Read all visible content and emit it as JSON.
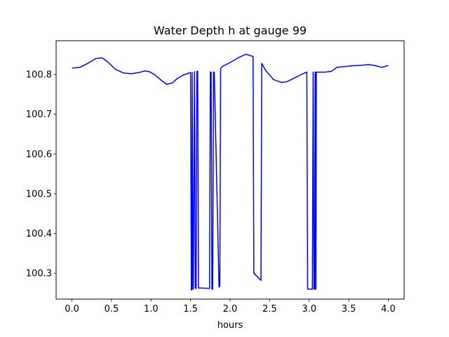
{
  "chart_data": {
    "type": "line",
    "title": "Water Depth h at gauge 99",
    "xlabel": "hours",
    "ylabel": "",
    "xlim": [
      -0.2,
      4.2
    ],
    "ylim": [
      100.235,
      100.885
    ],
    "xticks": [
      0.0,
      0.5,
      1.0,
      1.5,
      2.0,
      2.5,
      3.0,
      3.5,
      4.0
    ],
    "xtick_labels": [
      "0.0",
      "0.5",
      "1.0",
      "1.5",
      "2.0",
      "2.5",
      "3.0",
      "3.5",
      "4.0"
    ],
    "yticks": [
      100.3,
      100.4,
      100.5,
      100.6,
      100.7,
      100.8
    ],
    "ytick_labels": [
      "100.3",
      "100.4",
      "100.5",
      "100.6",
      "100.7",
      "100.8"
    ],
    "grid": false,
    "series": [
      {
        "color": "#0000ff",
        "x": [
          0.0,
          0.1,
          0.2,
          0.3,
          0.38,
          0.45,
          0.55,
          0.65,
          0.75,
          0.85,
          0.92,
          0.98,
          1.05,
          1.12,
          1.2,
          1.27,
          1.32,
          1.4,
          1.5,
          1.51,
          1.515,
          1.52,
          1.53,
          1.535,
          1.55,
          1.56,
          1.57,
          1.58,
          1.59,
          1.6,
          1.74,
          1.75,
          1.76,
          1.77,
          1.78,
          1.79,
          1.8,
          1.86,
          1.87,
          1.88,
          1.89,
          1.9,
          2.0,
          2.1,
          2.2,
          2.28,
          2.29,
          2.3,
          2.39,
          2.4,
          2.45,
          2.55,
          2.65,
          2.72,
          2.8,
          2.9,
          2.97,
          2.98,
          3.04,
          3.05,
          3.06,
          3.07,
          3.075,
          3.08,
          3.085,
          3.09,
          3.2,
          3.28,
          3.35,
          3.45,
          3.55,
          3.65,
          3.75,
          3.82,
          3.92,
          4.0
        ],
        "y": [
          100.816,
          100.818,
          100.828,
          100.84,
          100.842,
          100.832,
          100.813,
          100.804,
          100.802,
          100.805,
          100.809,
          100.807,
          100.799,
          100.787,
          100.775,
          100.779,
          100.788,
          100.798,
          100.805,
          100.258,
          100.258,
          100.805,
          100.26,
          100.26,
          100.807,
          100.262,
          100.262,
          100.808,
          100.808,
          100.263,
          100.262,
          100.806,
          100.806,
          100.26,
          100.26,
          100.806,
          100.806,
          100.265,
          100.268,
          100.815,
          100.817,
          100.82,
          100.83,
          100.842,
          100.851,
          100.846,
          100.846,
          100.3,
          100.282,
          100.828,
          100.81,
          100.787,
          100.78,
          100.782,
          100.79,
          100.8,
          100.806,
          100.26,
          100.26,
          100.806,
          100.26,
          100.26,
          100.806,
          100.806,
          100.26,
          100.806,
          100.806,
          100.808,
          100.818,
          100.82,
          100.822,
          100.823,
          100.825,
          100.823,
          100.818,
          100.823
        ]
      }
    ]
  }
}
